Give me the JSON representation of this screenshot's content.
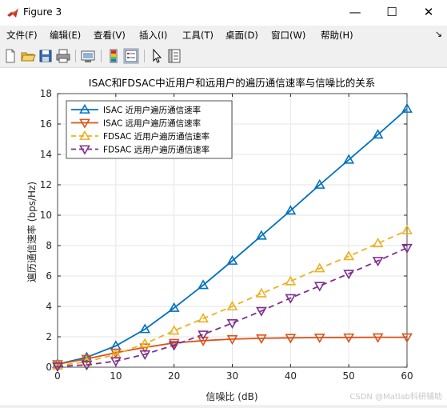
{
  "window": {
    "title": "Figure 3",
    "minimize": "—",
    "maximize": "☐",
    "close": "✕"
  },
  "menu": [
    "文件(F)",
    "编辑(E)",
    "查看(V)",
    "插入(I)",
    "工具(T)",
    "桌面(D)",
    "窗口(W)",
    "帮助(H)"
  ],
  "toolbar_icons": [
    "new-figure-icon",
    "open-file-icon",
    "save-icon",
    "print-icon",
    "link-plot-icon",
    "colorbar-icon",
    "legend-icon",
    "pointer-icon",
    "property-inspector-icon"
  ],
  "watermark": "CSDN @Matlab科研辅助",
  "chart_data": {
    "type": "line",
    "title": "ISAC和FDSAC中近用户和远用户的遍历通信速率与信噪比的关系",
    "xlabel": "信噪比 (dB)",
    "ylabel": "遍历通信速率 (bps/Hz)",
    "xlim": [
      0,
      60
    ],
    "ylim": [
      0,
      18
    ],
    "xticks": [
      0,
      10,
      20,
      30,
      40,
      50,
      60
    ],
    "yticks": [
      0,
      2,
      4,
      6,
      8,
      10,
      12,
      14,
      16,
      18
    ],
    "grid": true,
    "legend_location": "top-left",
    "x": [
      0,
      5,
      10,
      15,
      20,
      25,
      30,
      35,
      40,
      45,
      50,
      55,
      60
    ],
    "series": [
      {
        "name": "ISAC 近用户遍历通信速率",
        "color": "#0072BD",
        "style": "solid",
        "marker": "triangle-up",
        "values": [
          0.2,
          0.65,
          1.4,
          2.5,
          3.9,
          5.4,
          7.0,
          8.65,
          10.3,
          12.0,
          13.65,
          15.3,
          17.0
        ]
      },
      {
        "name": "ISAC 远用户遍历通信速率",
        "color": "#D95319",
        "style": "solid",
        "marker": "triangle-down",
        "values": [
          0.2,
          0.55,
          0.95,
          1.3,
          1.6,
          1.75,
          1.85,
          1.9,
          1.93,
          1.95,
          1.96,
          1.97,
          1.97
        ]
      },
      {
        "name": "FDSAC 近用户遍历通信速率",
        "color": "#EDB120",
        "style": "dashed",
        "marker": "triangle-up",
        "values": [
          0.1,
          0.35,
          0.85,
          1.55,
          2.4,
          3.2,
          4.0,
          4.85,
          5.65,
          6.5,
          7.3,
          8.15,
          9.0
        ]
      },
      {
        "name": "FDSAC 远用户遍历通信速率",
        "color": "#7E2F8E",
        "style": "dashed",
        "marker": "triangle-down",
        "values": [
          0.05,
          0.15,
          0.4,
          0.85,
          1.45,
          2.15,
          2.9,
          3.7,
          4.55,
          5.35,
          6.15,
          7.0,
          7.85
        ]
      }
    ]
  }
}
